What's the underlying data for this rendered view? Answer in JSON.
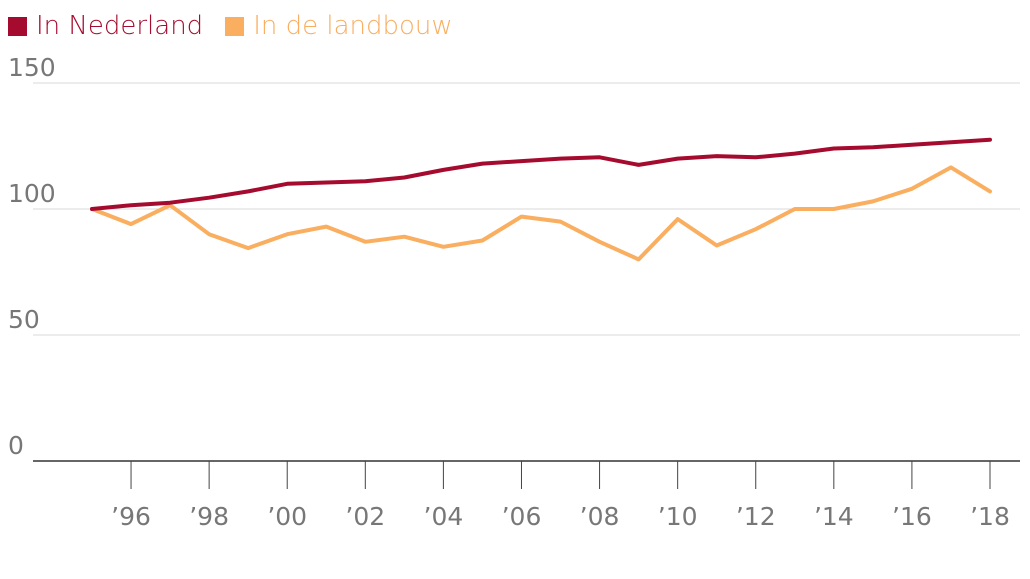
{
  "legend": [
    {
      "label": "In Nederland",
      "color": "#a50b2e"
    },
    {
      "label": "In de landbouw",
      "color": "#f9ae60"
    }
  ],
  "chart_data": {
    "type": "line",
    "title": "",
    "xlabel": "",
    "ylabel": "",
    "ylim": [
      0,
      150
    ],
    "y_ticks": [
      0,
      50,
      100,
      150
    ],
    "x_ticks": [
      1996,
      1998,
      2000,
      2002,
      2004,
      2006,
      2008,
      2010,
      2012,
      2014,
      2016,
      2018
    ],
    "x_tick_labels": [
      "’96",
      "’98",
      "’00",
      "’02",
      "’04",
      "’06",
      "’08",
      "’10",
      "’12",
      "’14",
      "’16",
      "’18"
    ],
    "grid": true,
    "legend_position": "top-left",
    "x": [
      1995,
      1996,
      1997,
      1998,
      1999,
      2000,
      2001,
      2002,
      2003,
      2004,
      2005,
      2006,
      2007,
      2008,
      2009,
      2010,
      2011,
      2012,
      2013,
      2014,
      2015,
      2016,
      2017,
      2018
    ],
    "series": [
      {
        "name": "In Nederland",
        "color": "#a50b2e",
        "values": [
          100,
          101.5,
          102.5,
          104.5,
          107,
          110,
          110.5,
          111,
          112.5,
          115.5,
          118,
          119,
          120,
          120.5,
          117.5,
          120,
          121,
          120.5,
          122,
          124,
          124.5,
          125.5,
          126.5,
          127.5
        ]
      },
      {
        "name": "In de landbouw",
        "color": "#f9ae60",
        "values": [
          100,
          94,
          101.5,
          90,
          84.5,
          90,
          93,
          87,
          89,
          85,
          87.5,
          97,
          95,
          87,
          80,
          96,
          85.5,
          92,
          100,
          100,
          103,
          108,
          116.5,
          107
        ]
      }
    ]
  }
}
